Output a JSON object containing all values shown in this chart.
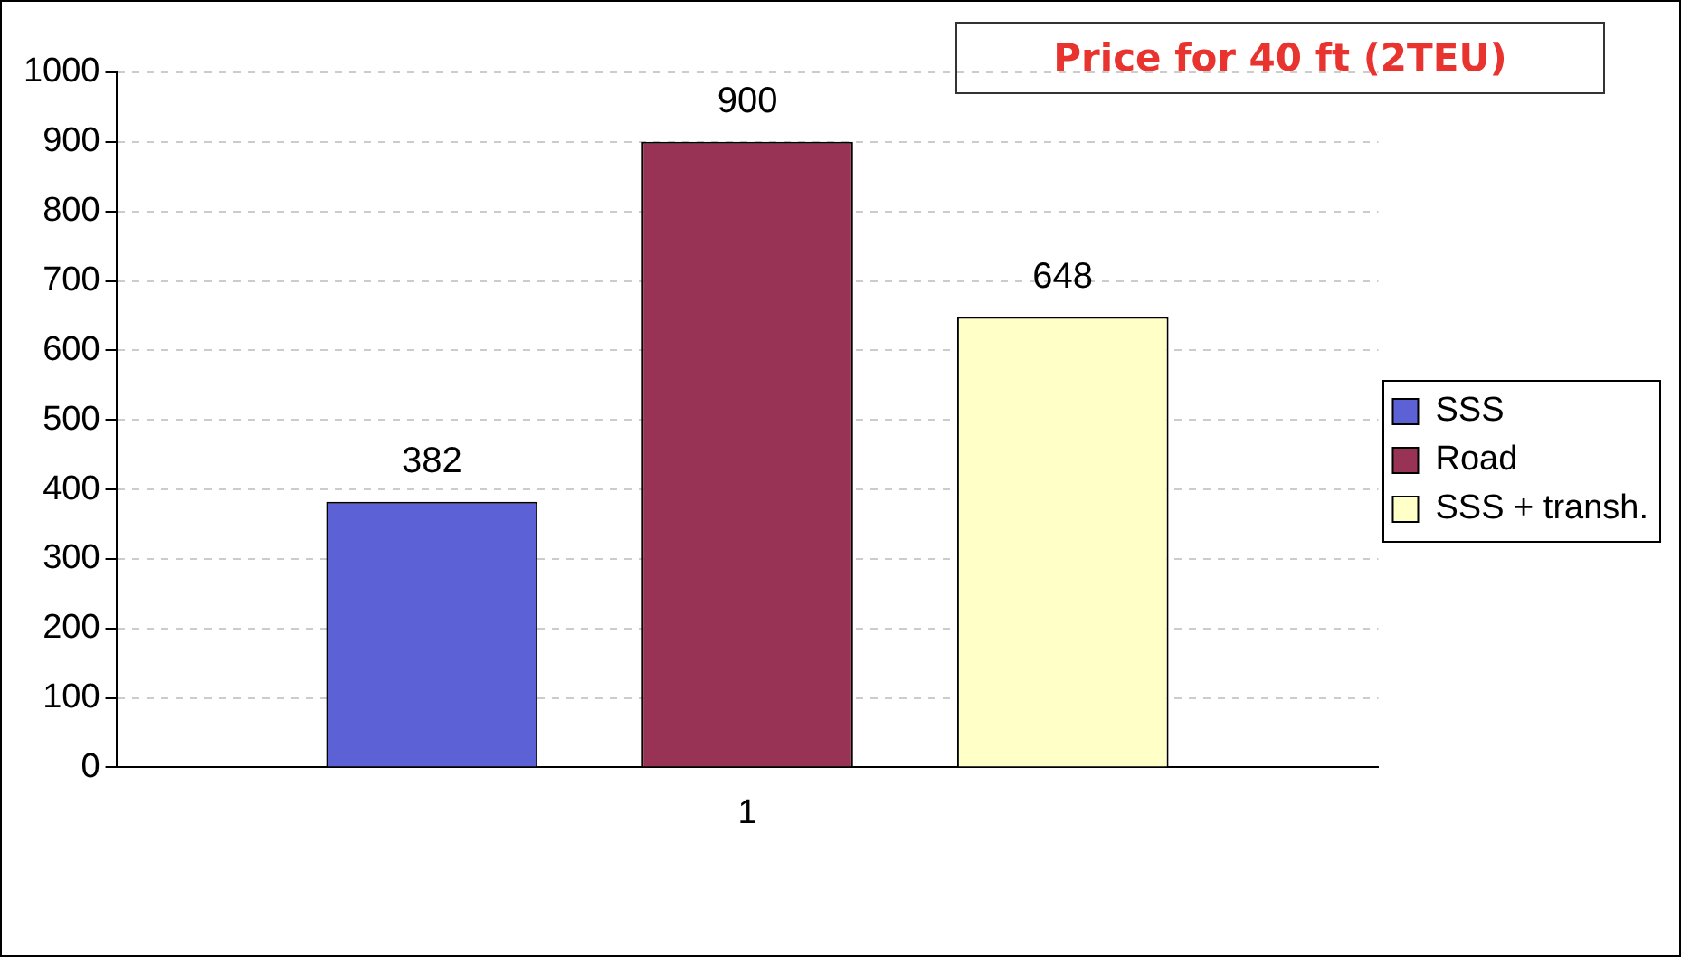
{
  "chart_data": {
    "type": "bar",
    "title": "Price for 40 ft (2TEU)",
    "categories": [
      "1"
    ],
    "series": [
      {
        "name": "SSS",
        "color": "#5c62d6",
        "values": [
          382
        ]
      },
      {
        "name": "Road",
        "color": "#993356",
        "values": [
          900
        ]
      },
      {
        "name": "SSS + transh.",
        "color": "#ffffc8",
        "values": [
          648
        ]
      }
    ],
    "ylim": [
      0,
      1000
    ],
    "yticks": [
      0,
      100,
      200,
      300,
      400,
      500,
      600,
      700,
      800,
      900,
      1000
    ],
    "grid": "y",
    "legend": "right",
    "data_labels": true
  }
}
